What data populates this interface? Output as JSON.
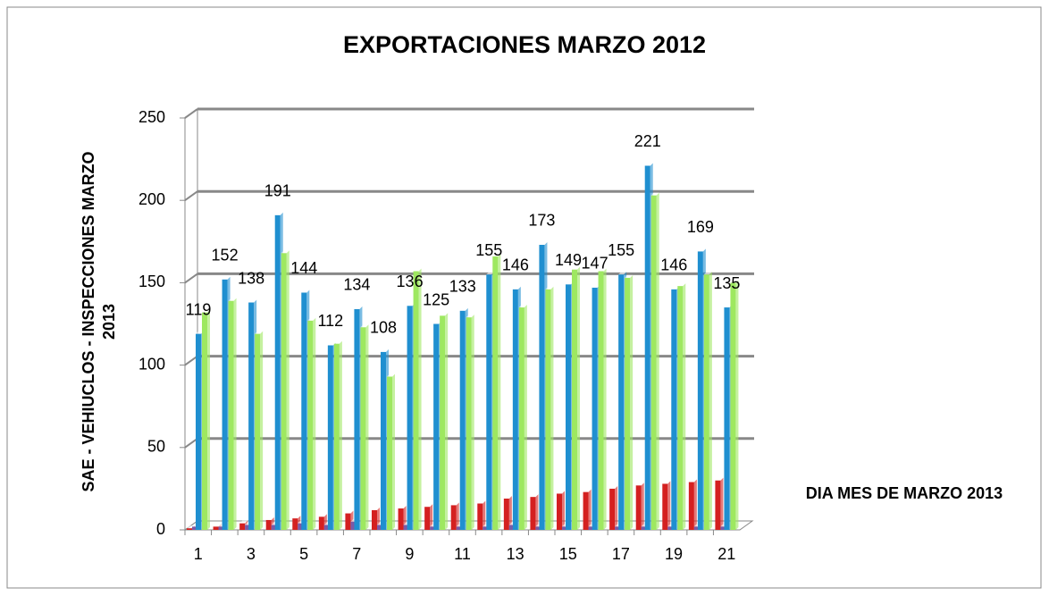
{
  "chart_data": {
    "type": "bar3d",
    "title": "EXPORTACIONES MARZO 2012",
    "y_label": [
      "SAE - VEHIUCLOS - INSPECCIONES MARZO",
      "2013"
    ],
    "x_label": "DIA MES DE MARZO 2013",
    "categories": [
      1,
      null,
      3,
      null,
      5,
      null,
      7,
      null,
      9,
      null,
      11,
      null,
      13,
      null,
      15,
      null,
      17,
      null,
      19,
      null,
      21
    ],
    "series": [
      {
        "color": "#d42020",
        "values": [
          1,
          2,
          4,
          6,
          7,
          8,
          10,
          12,
          13,
          14,
          15,
          16,
          19,
          20,
          22,
          23,
          25,
          27,
          28,
          29,
          30
        ]
      },
      {
        "color": "#7a5aa8",
        "values": [
          2,
          2,
          3,
          3,
          4,
          3,
          5,
          3,
          3,
          2,
          2,
          2,
          3,
          2,
          2,
          2,
          2,
          2,
          2,
          2,
          2
        ]
      },
      {
        "color": "#1f8fd0",
        "values": [
          119,
          152,
          138,
          191,
          144,
          112,
          134,
          108,
          136,
          125,
          133,
          155,
          146,
          173,
          149,
          147,
          155,
          221,
          146,
          169,
          135
        ],
        "data_labels": true
      },
      {
        "color": "#9ee860",
        "values": [
          132,
          139,
          119,
          168,
          127,
          113,
          123,
          93,
          157,
          130,
          129,
          166,
          135,
          146,
          158,
          157,
          153,
          203,
          148,
          155,
          150
        ]
      }
    ],
    "ylim": [
      0,
      250
    ],
    "yticks": [
      0,
      50,
      100,
      150,
      200,
      250
    ],
    "grid": true
  }
}
